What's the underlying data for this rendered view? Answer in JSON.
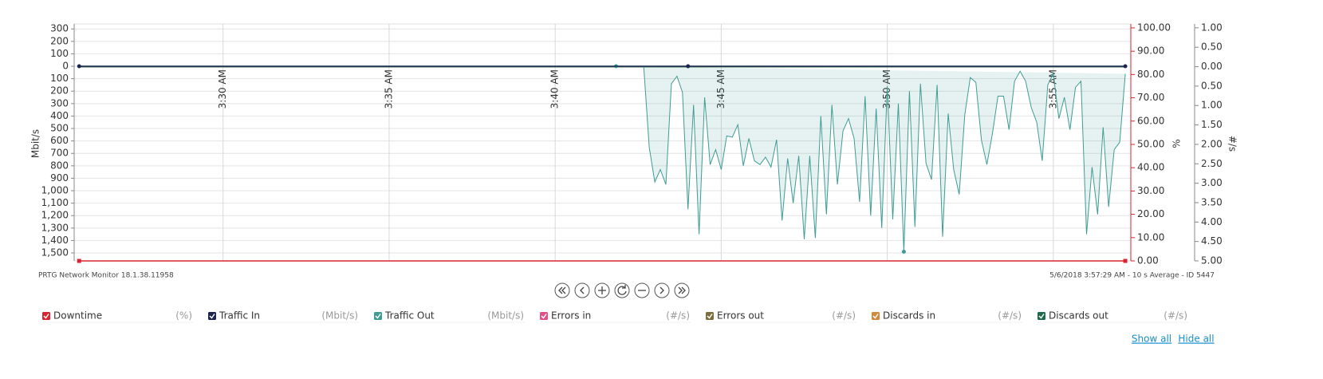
{
  "chart_data": {
    "type": "line",
    "grid": true,
    "xlim": [
      1531,
      3440
    ],
    "xticks": [
      {
        "value": 1800,
        "label": "3:30 AM"
      },
      {
        "value": 2100,
        "label": "3:35 AM"
      },
      {
        "value": 2400,
        "label": "3:40 AM"
      },
      {
        "value": 2700,
        "label": "3:45 AM"
      },
      {
        "value": 3000,
        "label": "3:50 AM"
      },
      {
        "value": 3300,
        "label": "3:55 AM"
      }
    ],
    "y_label": "Mbit/s",
    "ylim": [
      -1564,
      340
    ],
    "yticks": [
      300,
      200,
      100,
      0,
      {
        "value": -100,
        "label": "100"
      },
      {
        "value": -200,
        "label": "200"
      },
      {
        "value": -300,
        "label": "300"
      },
      {
        "value": -400,
        "label": "400"
      },
      {
        "value": -500,
        "label": "500"
      },
      {
        "value": -600,
        "label": "600"
      },
      {
        "value": -700,
        "label": "700"
      },
      {
        "value": -800,
        "label": "800"
      },
      {
        "value": -900,
        "label": "900"
      },
      {
        "value": -1000,
        "label": "1,000"
      },
      {
        "value": -1100,
        "label": "1,100"
      },
      {
        "value": -1200,
        "label": "1,200"
      },
      {
        "value": -1300,
        "label": "1,300"
      },
      {
        "value": -1400,
        "label": "1,400"
      },
      {
        "value": -1500,
        "label": "1,500"
      }
    ],
    "y2_label": "%",
    "y2lim": [
      0,
      101.7
    ],
    "y2ticks": [
      {
        "value": 100,
        "label": "100.00"
      },
      {
        "value": 90,
        "label": "90.00"
      },
      {
        "value": 80,
        "label": "80.00"
      },
      {
        "value": 70,
        "label": "70.00"
      },
      {
        "value": 60,
        "label": "60.00"
      },
      {
        "value": 50,
        "label": "50.00"
      },
      {
        "value": 40,
        "label": "40.00"
      },
      {
        "value": 30,
        "label": "30.00"
      },
      {
        "value": 20,
        "label": "20.00"
      },
      {
        "value": 10,
        "label": "10.00"
      },
      {
        "value": 0,
        "label": "0.00"
      }
    ],
    "y3_label": "#/s",
    "y3lim": [
      -5,
      1.1
    ],
    "y3ticks": [
      {
        "value": 1,
        "label": "1.00"
      },
      {
        "value": 0.5,
        "label": "0.50"
      },
      {
        "value": 0,
        "label": "0.00"
      },
      {
        "value": -0.5,
        "label": "0.50"
      },
      {
        "value": -1,
        "label": "1.00"
      },
      {
        "value": -1.5,
        "label": "1.50"
      },
      {
        "value": -2,
        "label": "2.00"
      },
      {
        "value": -2.5,
        "label": "2.50"
      },
      {
        "value": -3,
        "label": "3.00"
      },
      {
        "value": -3.5,
        "label": "3.50"
      },
      {
        "value": -4,
        "label": "4.00"
      },
      {
        "value": -4.5,
        "label": "4.50"
      },
      {
        "value": -5,
        "label": "5.00"
      }
    ],
    "series": [
      {
        "name": "Downtime",
        "unit": "(%)",
        "color": "#d9232e",
        "axis": "y2",
        "x": [
          1540,
          3430
        ],
        "values": [
          0,
          0
        ]
      },
      {
        "name": "Traffic In",
        "unit": "(Mbit/s)",
        "color": "#1b2550",
        "axis": "y",
        "x": [
          1540,
          2640,
          3430
        ],
        "values": [
          0,
          0,
          0
        ]
      },
      {
        "name": "Traffic Out",
        "unit": "(Mbit/s)",
        "color": "#3f9c94",
        "axis": "y",
        "area": true,
        "x": [
          2510,
          2520,
          2530,
          2540,
          2550,
          2560,
          2570,
          2580,
          2590,
          2600,
          2610,
          2620,
          2630,
          2640,
          2650,
          2660,
          2670,
          2680,
          2690,
          2700,
          2710,
          2720,
          2730,
          2740,
          2750,
          2760,
          2770,
          2780,
          2790,
          2800,
          2810,
          2820,
          2830,
          2840,
          2850,
          2860,
          2870,
          2880,
          2890,
          2900,
          2910,
          2920,
          2930,
          2940,
          2950,
          2960,
          2970,
          2980,
          2990,
          3000,
          3010,
          3020,
          3030,
          3040,
          3050,
          3060,
          3070,
          3080,
          3090,
          3100,
          3110,
          3120,
          3130,
          3140,
          3150,
          3160,
          3170,
          3180,
          3190,
          3200,
          3210,
          3220,
          3230,
          3240,
          3250,
          3260,
          3270,
          3280,
          3290,
          3300,
          3310,
          3320,
          3330,
          3340,
          3350,
          3360,
          3370,
          3380,
          3390,
          3400,
          3410,
          3420,
          3430
        ],
        "values": [
          0,
          0,
          0,
          0,
          0,
          0,
          -650,
          -930,
          -830,
          -950,
          -140,
          -80,
          -210,
          -1150,
          -310,
          -1350,
          -250,
          -790,
          -670,
          -830,
          -560,
          -570,
          -470,
          -800,
          -580,
          -760,
          -790,
          -730,
          -810,
          -590,
          -1240,
          -740,
          -1100,
          -720,
          -1390,
          -720,
          -1380,
          -400,
          -1190,
          -310,
          -950,
          -520,
          -420,
          -580,
          -1090,
          -240,
          -1200,
          -340,
          -1300,
          -160,
          -1230,
          -300,
          -1490,
          -200,
          -1290,
          -140,
          -780,
          -910,
          -150,
          -1370,
          -380,
          -830,
          -1030,
          -390,
          -90,
          -130,
          -590,
          -790,
          -540,
          -240,
          -240,
          -510,
          -120,
          -40,
          -120,
          -330,
          -450,
          -760,
          -150,
          -60,
          -420,
          -250,
          -510,
          -170,
          -120,
          -1350,
          -810,
          -1190,
          -490,
          -1130,
          -670,
          -610,
          -60
        ]
      },
      {
        "name": "Errors in",
        "unit": "(#/s)",
        "color": "#e0508a",
        "axis": "y3",
        "x": [
          1540,
          3430
        ],
        "values": [
          0,
          0
        ]
      },
      {
        "name": "Errors out",
        "unit": "(#/s)",
        "color": "#7a6e3a",
        "axis": "y3",
        "x": [
          1540,
          3430
        ],
        "values": [
          0,
          0
        ]
      },
      {
        "name": "Discards in",
        "unit": "(#/s)",
        "color": "#d08a38",
        "axis": "y3",
        "x": [
          1540,
          3430
        ],
        "values": [
          0,
          0
        ]
      },
      {
        "name": "Discards out",
        "unit": "(#/s)",
        "color": "#1d6b4b",
        "axis": "y3",
        "x": [
          1540,
          3430
        ],
        "values": [
          0,
          0
        ]
      }
    ]
  },
  "page": {
    "footer_left": "PRTG Network Monitor 18.1.38.11958",
    "footer_right": "5/6/2018 3:57:29 AM - 10 s Average - ID 5447",
    "links": [
      "Show all",
      "Hide all"
    ]
  }
}
